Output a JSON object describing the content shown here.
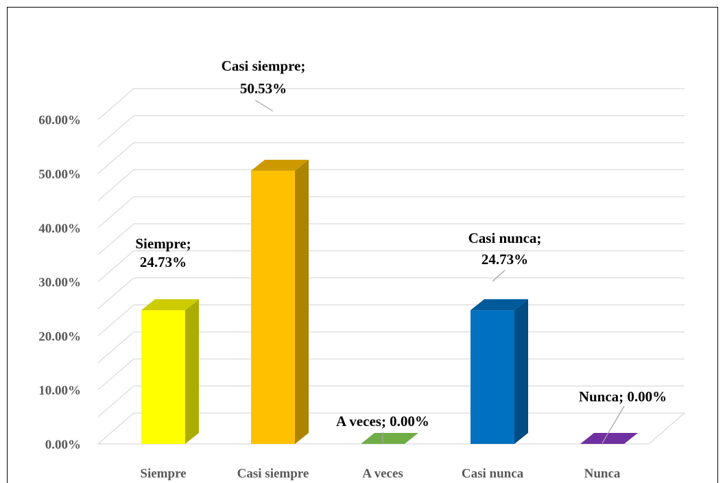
{
  "chart_data": {
    "type": "bar",
    "style": "3d-column",
    "categories": [
      "Siempre",
      "Casi siempre",
      "A veces",
      "Casi nunca",
      "Nunca"
    ],
    "values": [
      24.73,
      50.53,
      0.0,
      24.73,
      0.0
    ],
    "value_labels": [
      "24.73%",
      "50.53%",
      "0.00%",
      "24.73%",
      "0.00%"
    ],
    "data_labels": [
      [
        "Siempre;",
        "24.73%"
      ],
      [
        "Casi siempre;",
        "50.53%"
      ],
      [
        "A veces; 0.00%"
      ],
      [
        "Casi nunca;",
        "24.73%"
      ],
      [
        "Nunca; 0.00%"
      ]
    ],
    "colors": [
      "#FFFF00",
      "#FFC000",
      "#70AD47",
      "#0070C0",
      "#7030A0"
    ],
    "yticks": [
      "0.00%",
      "10.00%",
      "20.00%",
      "30.00%",
      "40.00%",
      "50.00%",
      "60.00%"
    ],
    "ylim": [
      0,
      60
    ],
    "title": "",
    "xlabel": "",
    "ylabel": "",
    "grid": true,
    "legend": "none"
  }
}
